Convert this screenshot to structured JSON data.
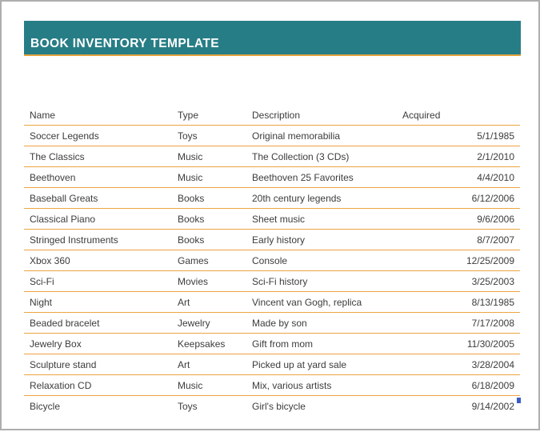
{
  "header": {
    "title": "BOOK INVENTORY TEMPLATE"
  },
  "table": {
    "columns": [
      "Name",
      "Type",
      "Description",
      "Acquired"
    ],
    "rows": [
      {
        "name": "Soccer Legends",
        "type": "Toys",
        "description": "Original memorabilia",
        "acquired": "5/1/1985"
      },
      {
        "name": "The Classics",
        "type": "Music",
        "description": "The Collection (3 CDs)",
        "acquired": "2/1/2010"
      },
      {
        "name": "Beethoven",
        "type": "Music",
        "description": "Beethoven 25 Favorites",
        "acquired": "4/4/2010"
      },
      {
        "name": "Baseball Greats",
        "type": "Books",
        "description": "20th century legends",
        "acquired": "6/12/2006"
      },
      {
        "name": "Classical Piano",
        "type": "Books",
        "description": "Sheet music",
        "acquired": "9/6/2006"
      },
      {
        "name": "Stringed Instruments",
        "type": "Books",
        "description": "Early history",
        "acquired": "8/7/2007"
      },
      {
        "name": "Xbox 360",
        "type": "Games",
        "description": "Console",
        "acquired": "12/25/2009"
      },
      {
        "name": "Sci-Fi",
        "type": "Movies",
        "description": "Sci-Fi history",
        "acquired": "3/25/2003"
      },
      {
        "name": "Night",
        "type": "Art",
        "description": "Vincent van Gogh, replica",
        "acquired": "8/13/1985"
      },
      {
        "name": "Beaded bracelet",
        "type": "Jewelry",
        "description": "Made by son",
        "acquired": "7/17/2008"
      },
      {
        "name": "Jewelry Box",
        "type": "Keepsakes",
        "description": "Gift from mom",
        "acquired": "11/30/2005"
      },
      {
        "name": "Sculpture stand",
        "type": "Art",
        "description": "Picked up at yard sale",
        "acquired": "3/28/2004"
      },
      {
        "name": "Relaxation CD",
        "type": "Music",
        "description": "Mix, various artists",
        "acquired": "6/18/2009"
      },
      {
        "name": "Bicycle",
        "type": "Toys",
        "description": "Girl's bicycle",
        "acquired": "9/14/2002"
      }
    ]
  },
  "colors": {
    "banner_teal": "#277d86",
    "accent_orange_line": "#eda443",
    "text": "#3c3c3c",
    "fill_handle_blue": "#3a5cc5",
    "page_border_gray": "#aeaeae"
  }
}
